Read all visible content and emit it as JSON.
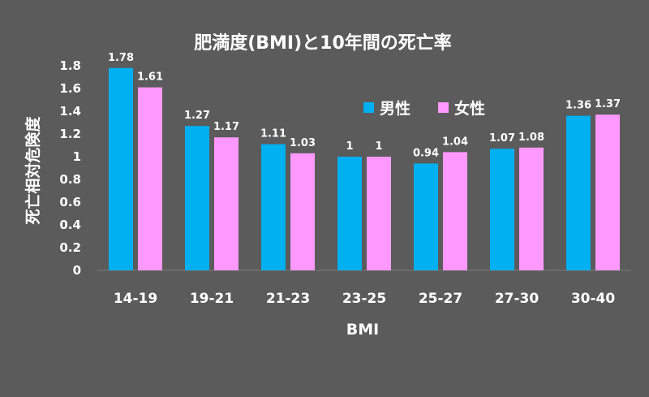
{
  "chart_data": {
    "type": "bar",
    "title": "肥満度(BMI)と10年間の死亡率",
    "xlabel": "BMI",
    "ylabel": "死亡相対危険度",
    "categories": [
      "14-19",
      "19-21",
      "21-23",
      "23-25",
      "25-27",
      "27-30",
      "30-40"
    ],
    "series": [
      {
        "name": "男性",
        "color": "#00b0f0",
        "values": [
          1.78,
          1.27,
          1.11,
          1,
          0.94,
          1.07,
          1.36
        ]
      },
      {
        "name": "女性",
        "color": "#ff99ff",
        "values": [
          1.61,
          1.17,
          1.03,
          1,
          1.04,
          1.08,
          1.37
        ]
      }
    ],
    "ylim": [
      0,
      1.8
    ],
    "yticks": [
      "0",
      "0.2",
      "0.4",
      "0.6",
      "0.8",
      "1",
      "1.2",
      "1.4",
      "1.6",
      "1.8"
    ],
    "grid": false,
    "legend_position": "top-right"
  }
}
